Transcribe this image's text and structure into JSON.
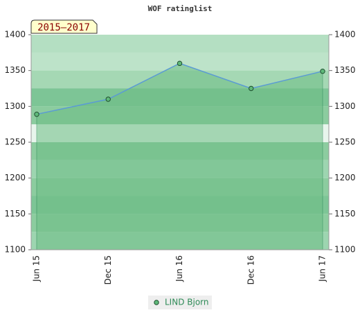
{
  "chart_data": {
    "type": "area",
    "title": "WOF ratinglist",
    "annotation": "2015–2017",
    "categories": [
      "Jun 15",
      "Dec 15",
      "Jun 16",
      "Dec 16",
      "Jun 17"
    ],
    "series": [
      {
        "name": "LIND Bjorn",
        "color": "#5b9bd5",
        "marker_color": "#5fb97a",
        "fill_color": "#6dbd85",
        "values": [
          1289,
          1310,
          1360,
          1325,
          1349
        ]
      }
    ],
    "ylim": [
      1100,
      1400
    ],
    "yticks": [
      1100,
      1150,
      1200,
      1250,
      1300,
      1350,
      1400
    ],
    "y2lim": [
      1100,
      1400
    ],
    "y2ticks": [
      1100,
      1150,
      1200,
      1250,
      1300,
      1350,
      1400
    ],
    "legend": "bottom"
  }
}
